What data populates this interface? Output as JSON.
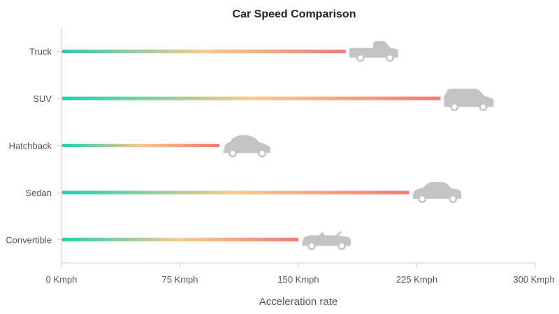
{
  "chart_data": {
    "type": "bar",
    "orientation": "horizontal",
    "title": "Car Speed Comparison",
    "xlabel": "Acceleration rate",
    "ylabel": "",
    "categories": [
      "Truck",
      "SUV",
      "Hatchback",
      "Sedan",
      "Convertible"
    ],
    "values": [
      180,
      240,
      100,
      220,
      150
    ],
    "xlim": [
      0,
      300
    ],
    "xticks": [
      0,
      75,
      150,
      225,
      300
    ],
    "xtick_labels": [
      "0 Kmph",
      "75 Kmph",
      "150 Kmph",
      "225 Kmph",
      "300 Kmph"
    ],
    "icons": [
      "pickup-truck-icon",
      "suv-icon",
      "hatchback-icon",
      "sedan-icon",
      "convertible-icon"
    ],
    "gradient_colors": [
      "#1fd1b0",
      "#f9c98a",
      "#f47a72"
    ],
    "icon_color": "#c4c4c4",
    "grid": false,
    "legend": "none"
  }
}
